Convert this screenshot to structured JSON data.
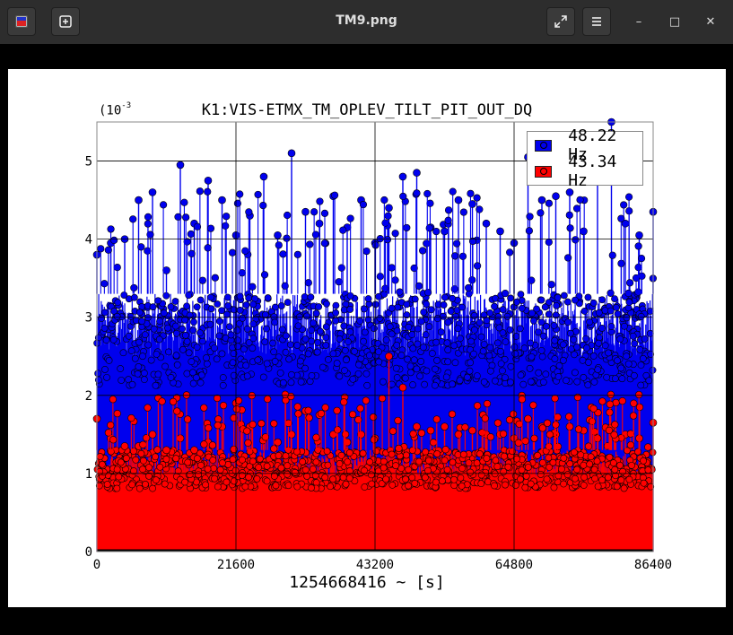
{
  "window": {
    "title": "TM9.png",
    "buttons": {
      "app_icon": "image-viewer-icon",
      "new_icon": "add-icon",
      "fullscreen_icon": "expand-icon",
      "menu_icon": "hamburger-menu-icon",
      "minimize": "–",
      "maximize": "□",
      "close": "✕"
    }
  },
  "colors": {
    "blue": "#0000ee",
    "red": "#ff0000",
    "frame": "#2d2d2d"
  },
  "chart_data": {
    "type": "scatter",
    "title": "K1:VIS-ETMX_TM_OPLEV_TILT_PIT_OUT_DQ",
    "exponent_label": "(10",
    "exponent_power": "-3",
    "xlabel": "1254668416 ~ [s]",
    "ylabel": "",
    "xlim": [
      0,
      86400
    ],
    "ylim": [
      0,
      5.5
    ],
    "x_ticks": [
      "0",
      "21600",
      "43200",
      "64800",
      "86400"
    ],
    "y_ticks": [
      "0",
      "1",
      "2",
      "3",
      "4",
      "5"
    ],
    "grid": true,
    "legend_position": "top-right",
    "style": "stem with filled bars to zero, circle markers",
    "series": [
      {
        "name": "48.22 Hz",
        "color": "#0000ee",
        "x": [
          0,
          2160,
          4320,
          6480,
          8640,
          10800,
          12960,
          15120,
          17280,
          19440,
          21600,
          23760,
          25920,
          28080,
          30240,
          32400,
          34560,
          36720,
          38880,
          41040,
          43200,
          45360,
          47520,
          49680,
          51840,
          54000,
          56160,
          58320,
          60480,
          62640,
          64800,
          66960,
          69120,
          71280,
          73440,
          75600,
          77760,
          79920,
          82080,
          84240,
          86400
        ],
        "values": [
          3.8,
          3.95,
          4.0,
          4.5,
          4.6,
          3.6,
          4.95,
          4.2,
          4.75,
          4.5,
          4.05,
          4.3,
          4.8,
          4.05,
          5.1,
          4.35,
          4.2,
          4.55,
          4.15,
          4.5,
          3.95,
          4.4,
          4.8,
          4.85,
          4.15,
          4.1,
          4.5,
          4.45,
          4.2,
          4.1,
          3.95,
          5.05,
          4.5,
          4.55,
          4.6,
          4.1,
          4.95,
          5.5,
          4.2,
          4.05,
          4.35
        ],
        "typical_band": [
          2.5,
          3.3
        ]
      },
      {
        "name": "43.34 Hz",
        "color": "#ff0000",
        "x": [
          0,
          2160,
          4320,
          6480,
          8640,
          10800,
          12960,
          15120,
          17280,
          19440,
          21600,
          23760,
          25920,
          28080,
          30240,
          32400,
          34560,
          36720,
          38880,
          41040,
          43200,
          45360,
          47520,
          49680,
          51840,
          54000,
          56160,
          58320,
          60480,
          62640,
          64800,
          66960,
          69120,
          71280,
          73440,
          75600,
          77760,
          79920,
          82080,
          84240,
          86400
        ],
        "values": [
          1.7,
          1.45,
          1.35,
          1.35,
          1.5,
          1.3,
          1.45,
          1.3,
          1.4,
          1.6,
          1.9,
          1.6,
          1.45,
          1.4,
          1.5,
          1.8,
          1.75,
          1.5,
          1.4,
          1.5,
          1.45,
          2.5,
          2.1,
          1.6,
          1.55,
          1.6,
          1.5,
          1.55,
          1.5,
          1.5,
          1.45,
          1.7,
          1.6,
          1.5,
          1.6,
          1.55,
          1.45,
          1.6,
          1.5,
          1.45,
          1.65
        ],
        "typical_band": [
          0.95,
          1.3
        ]
      }
    ]
  }
}
